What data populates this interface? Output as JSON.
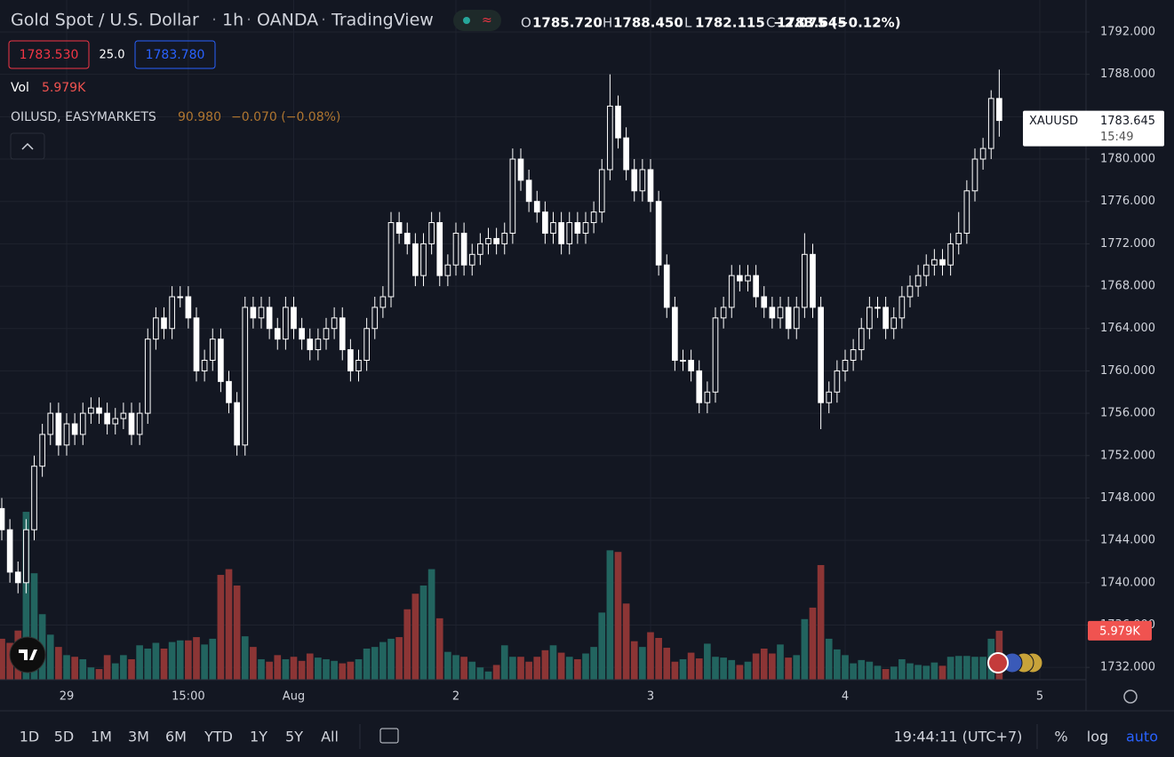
{
  "header": {
    "title": "Gold Spot / U.S. Dollar",
    "interval": "1h",
    "source": "OANDA",
    "platform": "TradingView",
    "ohlc": [
      {
        "key": "O",
        "value": "1785.720"
      },
      {
        "key": "H",
        "value": "1788.450"
      },
      {
        "key": "L",
        "value": "1782.115"
      },
      {
        "key": "C",
        "value": "1783.645"
      }
    ],
    "change": "−2.075 (−0.12%)",
    "bid": "1783.530",
    "spread": "25.0",
    "ask": "1783.780"
  },
  "indicators": {
    "vol_name": "Vol",
    "overlay_name": "OILUSD, EASYMARKETS",
    "overlay_price": "90.980",
    "overlay_change": "−0.070 (−0.08%)"
  },
  "chart_data": {
    "type": "candlestick",
    "symbol": "XAUUSD",
    "countdown": "15:49",
    "open": [
      1747,
      1745,
      1741,
      1740,
      1745,
      1751,
      1754,
      1756,
      1753,
      1755,
      1754,
      1756,
      1756.5,
      1756,
      1755,
      1755.5,
      1756,
      1754,
      1756,
      1763,
      1765,
      1764,
      1767,
      1767,
      1765,
      1760,
      1761,
      1763,
      1759,
      1757,
      1753,
      1766,
      1765,
      1766,
      1764,
      1763,
      1766,
      1764,
      1763,
      1762,
      1763,
      1764,
      1765,
      1762,
      1760,
      1761,
      1764,
      1766,
      1767,
      1774,
      1773,
      1772,
      1769,
      1772,
      1774,
      1769,
      1770,
      1773,
      1770,
      1771,
      1772,
      1772.5,
      1772,
      1773,
      1780,
      1778,
      1776,
      1775,
      1773,
      1774,
      1772,
      1774,
      1773,
      1774,
      1775,
      1779,
      1785,
      1782,
      1779,
      1777,
      1779,
      1776,
      1770,
      1766,
      1761,
      1761,
      1760,
      1757,
      1758,
      1765,
      1766,
      1769,
      1768.5,
      1769,
      1767,
      1766,
      1765,
      1766,
      1764,
      1766,
      1771,
      1766,
      1757,
      1758,
      1760,
      1761,
      1762,
      1764,
      1766,
      1766,
      1764,
      1765,
      1767,
      1768,
      1769,
      1770,
      1770.5,
      1770,
      1772,
      1773,
      1777,
      1780,
      1781,
      1785.72
    ],
    "high": [
      1748,
      1746,
      1742,
      1746,
      1752,
      1755,
      1757,
      1757,
      1756,
      1756,
      1757,
      1757.5,
      1757.5,
      1757,
      1756.5,
      1757,
      1757,
      1757,
      1764,
      1766,
      1766,
      1768,
      1768,
      1768,
      1766,
      1762,
      1764,
      1764,
      1760,
      1758,
      1767,
      1767,
      1767,
      1767,
      1765,
      1767,
      1767,
      1765,
      1764,
      1764,
      1765,
      1766,
      1766,
      1763,
      1762,
      1765,
      1767,
      1768,
      1775,
      1775,
      1774,
      1773,
      1773,
      1775,
      1775,
      1771,
      1774,
      1774,
      1772,
      1773,
      1773.5,
      1773.5,
      1774,
      1781,
      1781,
      1779,
      1777,
      1776,
      1775,
      1775,
      1775,
      1775,
      1775,
      1776,
      1780,
      1788,
      1786,
      1783,
      1780,
      1780,
      1780,
      1777,
      1771,
      1767,
      1762,
      1762,
      1761,
      1759,
      1766,
      1767,
      1770,
      1770,
      1770,
      1770,
      1768,
      1767,
      1767,
      1767,
      1767,
      1773,
      1772,
      1767,
      1759,
      1761,
      1762,
      1763,
      1765,
      1767,
      1767,
      1767,
      1766,
      1768,
      1769,
      1770,
      1771,
      1771.5,
      1771.5,
      1773,
      1775,
      1778,
      1781,
      1782,
      1786.5,
      1788.45
    ],
    "low": [
      1744,
      1740,
      1739,
      1739,
      1744,
      1750,
      1753,
      1752,
      1752,
      1753,
      1753,
      1755,
      1755,
      1754,
      1754,
      1754.5,
      1753,
      1753,
      1755,
      1762,
      1763,
      1763,
      1766,
      1764,
      1759,
      1759,
      1760,
      1758,
      1756,
      1752,
      1752,
      1764,
      1764,
      1763,
      1762,
      1762,
      1763,
      1762,
      1761,
      1761,
      1762,
      1763,
      1761,
      1759,
      1759,
      1760,
      1763,
      1765,
      1766,
      1772,
      1771,
      1768,
      1768,
      1771,
      1768,
      1768,
      1769,
      1769,
      1769,
      1770,
      1771,
      1771,
      1771,
      1772,
      1777,
      1775,
      1774,
      1772,
      1772,
      1771,
      1771,
      1772,
      1772,
      1773,
      1774,
      1778,
      1781,
      1778,
      1776,
      1776,
      1775,
      1769,
      1765,
      1760,
      1760,
      1759,
      1756,
      1756,
      1757,
      1764,
      1765,
      1767.5,
      1767.5,
      1766,
      1765,
      1764,
      1764,
      1763,
      1763,
      1765,
      1765,
      1754.5,
      1756,
      1757,
      1759,
      1760,
      1761,
      1763,
      1765,
      1763,
      1763,
      1764,
      1766,
      1767,
      1768,
      1769,
      1769,
      1769,
      1771,
      1772,
      1776,
      1779,
      1780,
      1782.115
    ],
    "close": [
      1745,
      1741,
      1740,
      1745,
      1751,
      1754,
      1756,
      1753,
      1755,
      1754,
      1756,
      1756.5,
      1756,
      1755,
      1755.5,
      1756,
      1754,
      1756,
      1763,
      1765,
      1764,
      1767,
      1767,
      1765,
      1760,
      1761,
      1763,
      1759,
      1757,
      1753,
      1766,
      1765,
      1766,
      1764,
      1763,
      1766,
      1764,
      1763,
      1762,
      1763,
      1764,
      1765,
      1762,
      1760,
      1761,
      1764,
      1766,
      1767,
      1774,
      1773,
      1772,
      1769,
      1772,
      1774,
      1769,
      1770,
      1773,
      1770,
      1771,
      1772,
      1772.5,
      1772,
      1773,
      1780,
      1778,
      1776,
      1775,
      1773,
      1774,
      1772,
      1774,
      1773,
      1774,
      1775,
      1779,
      1785,
      1782,
      1779,
      1777,
      1779,
      1776,
      1770,
      1766,
      1761,
      1761,
      1760,
      1757,
      1758,
      1765,
      1766,
      1769,
      1768.5,
      1769,
      1767,
      1766,
      1765,
      1766,
      1764,
      1766,
      1771,
      1766,
      1757,
      1758,
      1760,
      1761,
      1762,
      1764,
      1766,
      1766,
      1764,
      1765,
      1767,
      1768,
      1769,
      1770,
      1770.5,
      1770,
      1772,
      1773,
      1777,
      1780,
      1781,
      1785.72,
      1783.645
    ],
    "volume": [
      5000,
      4500,
      6000,
      20500,
      13000,
      8000,
      5500,
      4000,
      3000,
      2800,
      2500,
      1500,
      1300,
      3000,
      2000,
      3000,
      2500,
      4200,
      3800,
      4500,
      3800,
      4600,
      4800,
      4800,
      5200,
      4300,
      5000,
      12800,
      13500,
      11500,
      5300,
      4000,
      2500,
      2200,
      3000,
      2500,
      2800,
      2300,
      3200,
      2700,
      2500,
      2300,
      2000,
      2200,
      2500,
      3800,
      4000,
      4600,
      5000,
      5200,
      8600,
      10500,
      11500,
      13500,
      7500,
      3400,
      3000,
      2800,
      2200,
      1500,
      1000,
      1800,
      4200,
      2800,
      2800,
      2200,
      2800,
      3600,
      4200,
      3300,
      2800,
      2500,
      3200,
      4000,
      8200,
      15800,
      15600,
      9300,
      4700,
      4000,
      5800,
      5100,
      3900,
      2200,
      2500,
      3300,
      2600,
      4400,
      2800,
      2700,
      2400,
      1800,
      2200,
      3200,
      3800,
      3200,
      4300,
      2700,
      3000,
      7400,
      8800,
      14000,
      5000,
      3700,
      3000,
      2000,
      2400,
      2200,
      1700,
      1300,
      1600,
      2500,
      2000,
      1800,
      1700,
      2100,
      1700,
      2800,
      2900,
      2900,
      2800,
      2800,
      5000,
      5979
    ],
    "volume_label": "5.979K",
    "xlim": [
      -0.22,
      133.7
    ],
    "xticks": [
      {
        "value": 8,
        "label": "29"
      },
      {
        "value": 23,
        "label": "15:00"
      },
      {
        "value": 36,
        "label": "Aug"
      },
      {
        "value": 56,
        "label": "2"
      },
      {
        "value": 80,
        "label": "3"
      },
      {
        "value": 104,
        "label": "4"
      },
      {
        "value": 128,
        "label": "5"
      }
    ],
    "ylim": [
      1730.84,
      1795.02
    ],
    "yticks": [
      {
        "value": 1732,
        "label": "1732.000"
      },
      {
        "value": 1736,
        "label": "1736.000"
      },
      {
        "value": 1740,
        "label": "1740.000"
      },
      {
        "value": 1744,
        "label": "1744.000"
      },
      {
        "value": 1748,
        "label": "1748.000"
      },
      {
        "value": 1752,
        "label": "1752.000"
      },
      {
        "value": 1756,
        "label": "1756.000"
      },
      {
        "value": 1760,
        "label": "1760.000"
      },
      {
        "value": 1764,
        "label": "1764.000"
      },
      {
        "value": 1768,
        "label": "1768.000"
      },
      {
        "value": 1772,
        "label": "1772.000"
      },
      {
        "value": 1776,
        "label": "1776.000"
      },
      {
        "value": 1780,
        "label": "1780.000"
      },
      {
        "value": 1784,
        "label": "1784.000"
      },
      {
        "value": 1788,
        "label": "1788.000"
      },
      {
        "value": 1792,
        "label": "1792.000"
      }
    ],
    "vlim": [
      0,
      83000
    ],
    "grid": true,
    "candle_color": "#ffffff",
    "volume_up_color": "#22645f",
    "volume_down_color": "#8c3535",
    "volume_label_color": "#f05350"
  },
  "toolbar": {
    "ranges": [
      "1D",
      "5D",
      "1M",
      "3M",
      "6M",
      "YTD",
      "1Y",
      "5Y",
      "All"
    ],
    "clock": "19:44:11 (UTC+7)",
    "options": [
      "%",
      "log",
      "auto"
    ]
  }
}
